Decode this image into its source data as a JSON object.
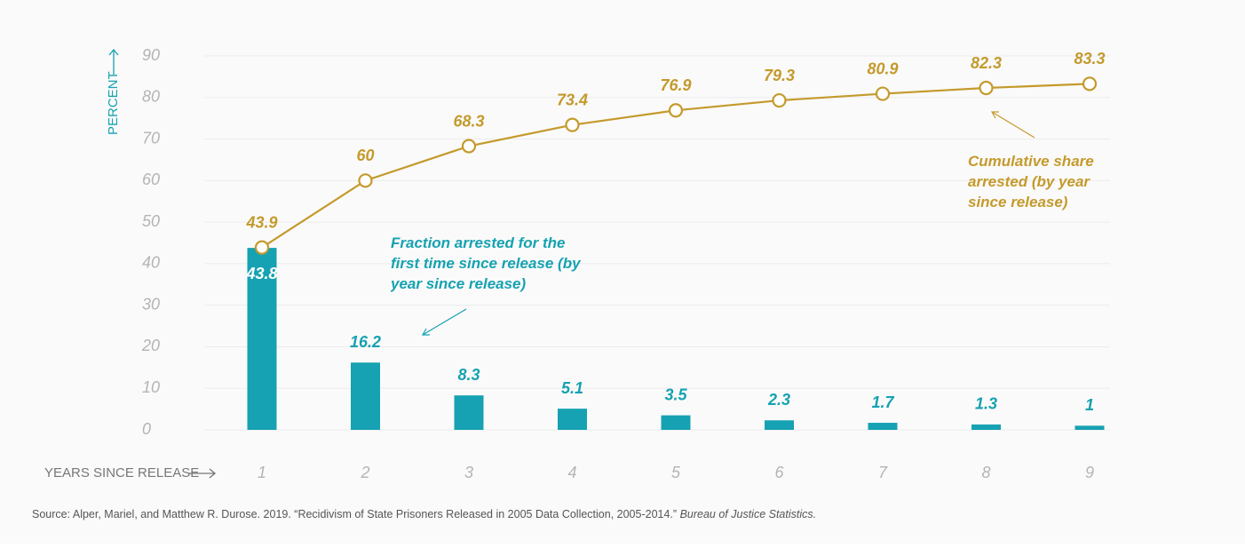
{
  "chart_data": {
    "type": "combo",
    "y_axis_label": "PERCENT",
    "x_axis_label": "YEARS SINCE RELEASE",
    "categories": [
      "1",
      "2",
      "3",
      "4",
      "5",
      "6",
      "7",
      "8",
      "9"
    ],
    "ylim": [
      0,
      90
    ],
    "yticks": [
      0,
      10,
      20,
      30,
      40,
      50,
      60,
      70,
      80,
      90
    ],
    "grid": true,
    "series": [
      {
        "name": "Fraction arrested for the first time since release (by year since release)",
        "type": "bar",
        "color": "#16a2b2",
        "values": [
          43.8,
          16.2,
          8.3,
          5.1,
          3.5,
          2.3,
          1.7,
          1.3,
          1
        ]
      },
      {
        "name": "Cumulative share arrested (by year since release)",
        "type": "line",
        "color": "#c49a2c",
        "values": [
          43.9,
          60,
          68.3,
          73.4,
          76.9,
          79.3,
          80.9,
          82.3,
          83.3
        ]
      }
    ],
    "source": "Source: Alper, Mariel, and Matthew R. Durose. 2019. “Recidivism of State Prisoners Released in 2005 Data Collection, 2005-2014.”",
    "source_publisher": "Bureau of Justice Statistics."
  }
}
